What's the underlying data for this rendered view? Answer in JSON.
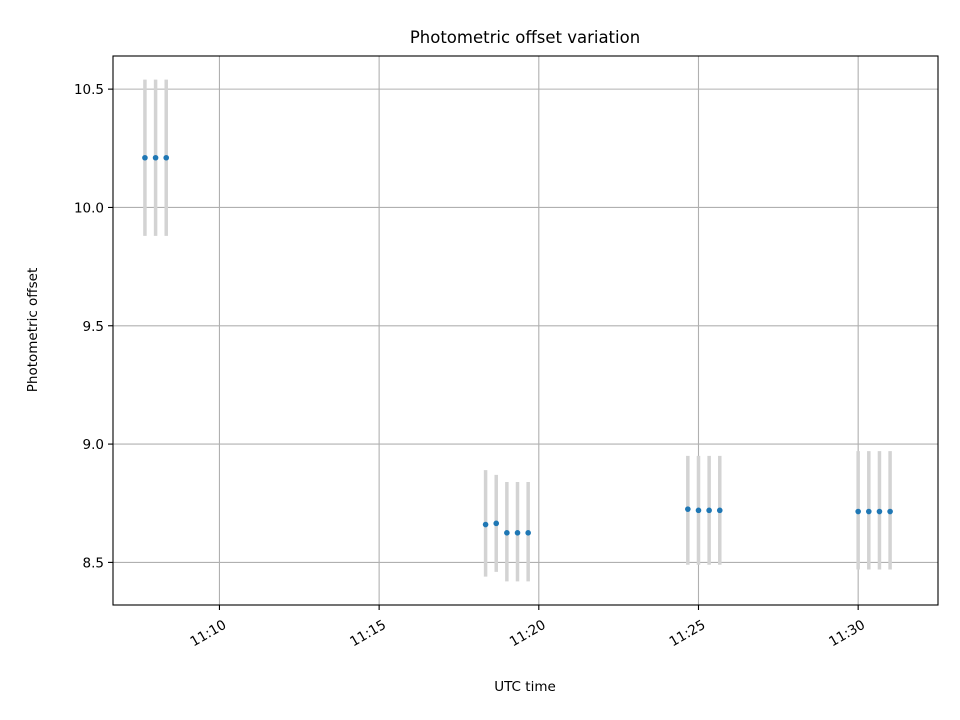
{
  "chart_data": {
    "type": "scatter",
    "title": "Photometric offset variation",
    "xlabel": "UTC time",
    "ylabel": "Photometric offset",
    "x_axis_kind": "time",
    "xlim": [
      "11:06:40",
      "11:32:30"
    ],
    "ylim": [
      8.32,
      10.64
    ],
    "xticks": [
      "11:10",
      "11:15",
      "11:20",
      "11:25",
      "11:30"
    ],
    "yticks": [
      8.5,
      9.0,
      9.5,
      10.0,
      10.5
    ],
    "ytick_labels": [
      "8.5",
      "9.0",
      "9.5",
      "10.0",
      "10.5"
    ],
    "grid": true,
    "marker_color": "#1f77b4",
    "errorbar_color": "#d3d3d3",
    "points": [
      {
        "x": "11:07:40",
        "y": 10.21,
        "yerr_low": 9.88,
        "yerr_high": 10.54
      },
      {
        "x": "11:08:00",
        "y": 10.21,
        "yerr_low": 9.88,
        "yerr_high": 10.54
      },
      {
        "x": "11:08:20",
        "y": 10.21,
        "yerr_low": 9.88,
        "yerr_high": 10.54
      },
      {
        "x": "11:18:20",
        "y": 8.66,
        "yerr_low": 8.44,
        "yerr_high": 8.89
      },
      {
        "x": "11:18:40",
        "y": 8.665,
        "yerr_low": 8.46,
        "yerr_high": 8.87
      },
      {
        "x": "11:19:00",
        "y": 8.625,
        "yerr_low": 8.42,
        "yerr_high": 8.84
      },
      {
        "x": "11:19:20",
        "y": 8.625,
        "yerr_low": 8.42,
        "yerr_high": 8.84
      },
      {
        "x": "11:19:40",
        "y": 8.625,
        "yerr_low": 8.42,
        "yerr_high": 8.84
      },
      {
        "x": "11:24:40",
        "y": 8.725,
        "yerr_low": 8.49,
        "yerr_high": 8.95
      },
      {
        "x": "11:25:00",
        "y": 8.72,
        "yerr_low": 8.49,
        "yerr_high": 8.95
      },
      {
        "x": "11:25:20",
        "y": 8.72,
        "yerr_low": 8.49,
        "yerr_high": 8.95
      },
      {
        "x": "11:25:40",
        "y": 8.72,
        "yerr_low": 8.49,
        "yerr_high": 8.95
      },
      {
        "x": "11:30:00",
        "y": 8.715,
        "yerr_low": 8.47,
        "yerr_high": 8.97
      },
      {
        "x": "11:30:20",
        "y": 8.715,
        "yerr_low": 8.47,
        "yerr_high": 8.97
      },
      {
        "x": "11:30:40",
        "y": 8.715,
        "yerr_low": 8.47,
        "yerr_high": 8.97
      },
      {
        "x": "11:31:00",
        "y": 8.715,
        "yerr_low": 8.47,
        "yerr_high": 8.97
      }
    ]
  }
}
